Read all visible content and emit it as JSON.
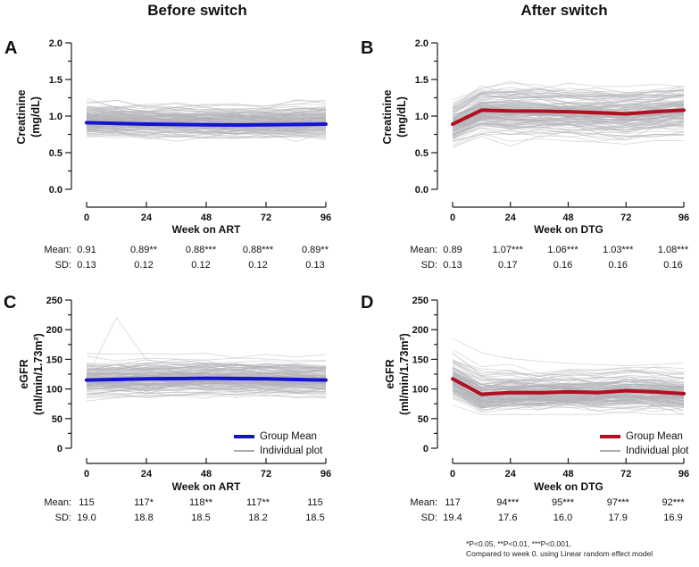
{
  "figure": {
    "title_left": "Before switch",
    "title_right": "After switch",
    "row_label_mean": "Mean:",
    "row_label_sd": "SD:",
    "footnote_line1": "*P<0.05, **P<0.01, ***P<0.001,",
    "footnote_line2": "Compared to week 0. using Linear random effect model"
  },
  "legend": {
    "group_mean": "Group Mean",
    "individual": "Individual plot"
  },
  "colors": {
    "group_mean_blue": "#1414cf",
    "group_mean_red": "#b01020",
    "individual_gray": "#b3b3b8",
    "axis": "#1a1a1a"
  },
  "chart_data": [
    {
      "id": "A",
      "type": "line",
      "panel_label": "A",
      "column_title": "Before switch",
      "ylabel": "Creatinine",
      "ylabel_unit": "(mg/dL)",
      "xlabel": "Week on ART",
      "ylim": [
        0.0,
        2.0
      ],
      "ytick_values": [
        0.0,
        0.5,
        1.0,
        1.5,
        2.0
      ],
      "ytick_labels": [
        "0.0",
        "0.5",
        "1.0",
        "1.5",
        "2.0"
      ],
      "yminor_step": 0.25,
      "xlim": [
        0,
        96
      ],
      "xticks": [
        0,
        24,
        48,
        72,
        96
      ],
      "mean_color": "#1414cf",
      "group_mean_line": {
        "x": [
          0,
          12,
          24,
          36,
          48,
          60,
          72,
          84,
          96
        ],
        "y": [
          0.91,
          0.9,
          0.89,
          0.885,
          0.88,
          0.878,
          0.88,
          0.885,
          0.89
        ]
      },
      "summary_table": {
        "weeks": [
          0,
          24,
          48,
          72,
          96
        ],
        "mean": [
          "0.91",
          "0.89**",
          "0.88***",
          "0.88***",
          "0.89**"
        ],
        "sd": [
          "0.13",
          "0.12",
          "0.12",
          "0.12",
          "0.13"
        ]
      },
      "has_legend": false
    },
    {
      "id": "B",
      "type": "line",
      "panel_label": "B",
      "column_title": "After switch",
      "ylabel": "Creatinine",
      "ylabel_unit": "(mg/dL)",
      "xlabel": "Week on DTG",
      "ylim": [
        0.0,
        2.0
      ],
      "ytick_values": [
        0.0,
        0.5,
        1.0,
        1.5,
        2.0
      ],
      "ytick_labels": [
        "0.0",
        "0.5",
        "1.0",
        "1.5",
        "2.0"
      ],
      "yminor_step": 0.25,
      "xlim": [
        0,
        96
      ],
      "xticks": [
        0,
        24,
        48,
        72,
        96
      ],
      "mean_color": "#b01020",
      "group_mean_line": {
        "x": [
          0,
          12,
          24,
          36,
          48,
          60,
          72,
          84,
          96
        ],
        "y": [
          0.89,
          1.08,
          1.07,
          1.068,
          1.06,
          1.045,
          1.03,
          1.06,
          1.08
        ]
      },
      "summary_table": {
        "weeks": [
          0,
          24,
          48,
          72,
          96
        ],
        "mean": [
          "0.89",
          "1.07***",
          "1.06***",
          "1.03***",
          "1.08***"
        ],
        "sd": [
          "0.13",
          "0.17",
          "0.16",
          "0.16",
          "0.16"
        ]
      },
      "has_legend": false
    },
    {
      "id": "C",
      "type": "line",
      "panel_label": "C",
      "column_title": "Before switch",
      "ylabel": "eGFR",
      "ylabel_unit": "(ml/min/1.73m²)",
      "xlabel": "Week on ART",
      "ylim": [
        0,
        250
      ],
      "ytick_values": [
        0,
        50,
        100,
        150,
        200,
        250
      ],
      "ytick_labels": [
        "0",
        "50",
        "100",
        "150",
        "200",
        "250"
      ],
      "yminor_step": 25,
      "xlim": [
        0,
        96
      ],
      "xticks": [
        0,
        24,
        48,
        72,
        96
      ],
      "mean_color": "#1414cf",
      "group_mean_line": {
        "x": [
          0,
          12,
          24,
          36,
          48,
          60,
          72,
          84,
          96
        ],
        "y": [
          115,
          116,
          117,
          117.5,
          118,
          117.5,
          117,
          116,
          115
        ]
      },
      "summary_table": {
        "weeks": [
          0,
          24,
          48,
          72,
          96
        ],
        "mean": [
          "115",
          "117*",
          "118**",
          "117**",
          "115"
        ],
        "sd": [
          "19.0",
          "18.8",
          "18.5",
          "18.2",
          "18.5"
        ]
      },
      "has_legend": true
    },
    {
      "id": "D",
      "type": "line",
      "panel_label": "D",
      "column_title": "After switch",
      "ylabel": "eGFR",
      "ylabel_unit": "(ml/min/1.73m²)",
      "xlabel": "Week on DTG",
      "ylim": [
        0,
        250
      ],
      "ytick_values": [
        0,
        50,
        100,
        150,
        200,
        250
      ],
      "ytick_labels": [
        "0",
        "50",
        "100",
        "150",
        "200",
        "250"
      ],
      "yminor_step": 25,
      "xlim": [
        0,
        96
      ],
      "xticks": [
        0,
        24,
        48,
        72,
        96
      ],
      "mean_color": "#b01020",
      "group_mean_line": {
        "x": [
          0,
          12,
          24,
          36,
          48,
          60,
          72,
          84,
          96
        ],
        "y": [
          117,
          91,
          94,
          93.5,
          95,
          94,
          97,
          95,
          92
        ]
      },
      "summary_table": {
        "weeks": [
          0,
          24,
          48,
          72,
          96
        ],
        "mean": [
          "117",
          "94***",
          "95***",
          "97***",
          "92***"
        ],
        "sd": [
          "19.4",
          "17.6",
          "16.0",
          "17.9",
          "16.9"
        ]
      },
      "has_legend": true
    }
  ]
}
